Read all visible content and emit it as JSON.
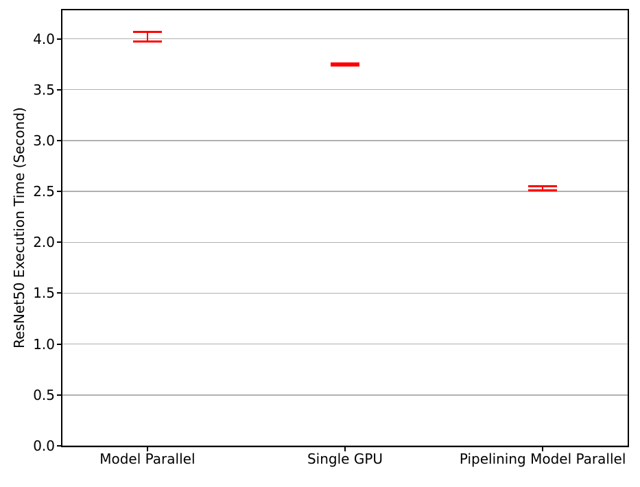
{
  "chart_data": {
    "type": "bar",
    "title": "",
    "categories": [
      "Model Parallel",
      "Single GPU",
      "Pipelining Model Parallel"
    ],
    "values": [
      4.02,
      3.75,
      2.53
    ],
    "errors": [
      0.05,
      0.01,
      0.02
    ],
    "xlabel": "",
    "ylabel": "ResNet50 Execution Time (Second)",
    "ylim": [
      0,
      4.28
    ],
    "yticks": [
      0.0,
      0.5,
      1.0,
      1.5,
      2.0,
      2.5,
      3.0,
      3.5,
      4.0
    ],
    "ytick_labels": [
      "0.0",
      "0.5",
      "1.0",
      "1.5",
      "2.0",
      "2.5",
      "3.0",
      "3.5",
      "4.0"
    ],
    "xlim": [
      -0.43,
      2.43
    ],
    "x_positions": [
      0,
      1,
      2
    ],
    "bar_width": 0.6,
    "grid": "horizontal-only",
    "legend": "none",
    "colors": {
      "bar_fill": "#1f77b4",
      "bar_alpha": 0.5,
      "error": "#ff0000",
      "grid": "#b0b0b0",
      "spine": "#000000",
      "text": "#000000",
      "background": "#ffffff"
    }
  }
}
